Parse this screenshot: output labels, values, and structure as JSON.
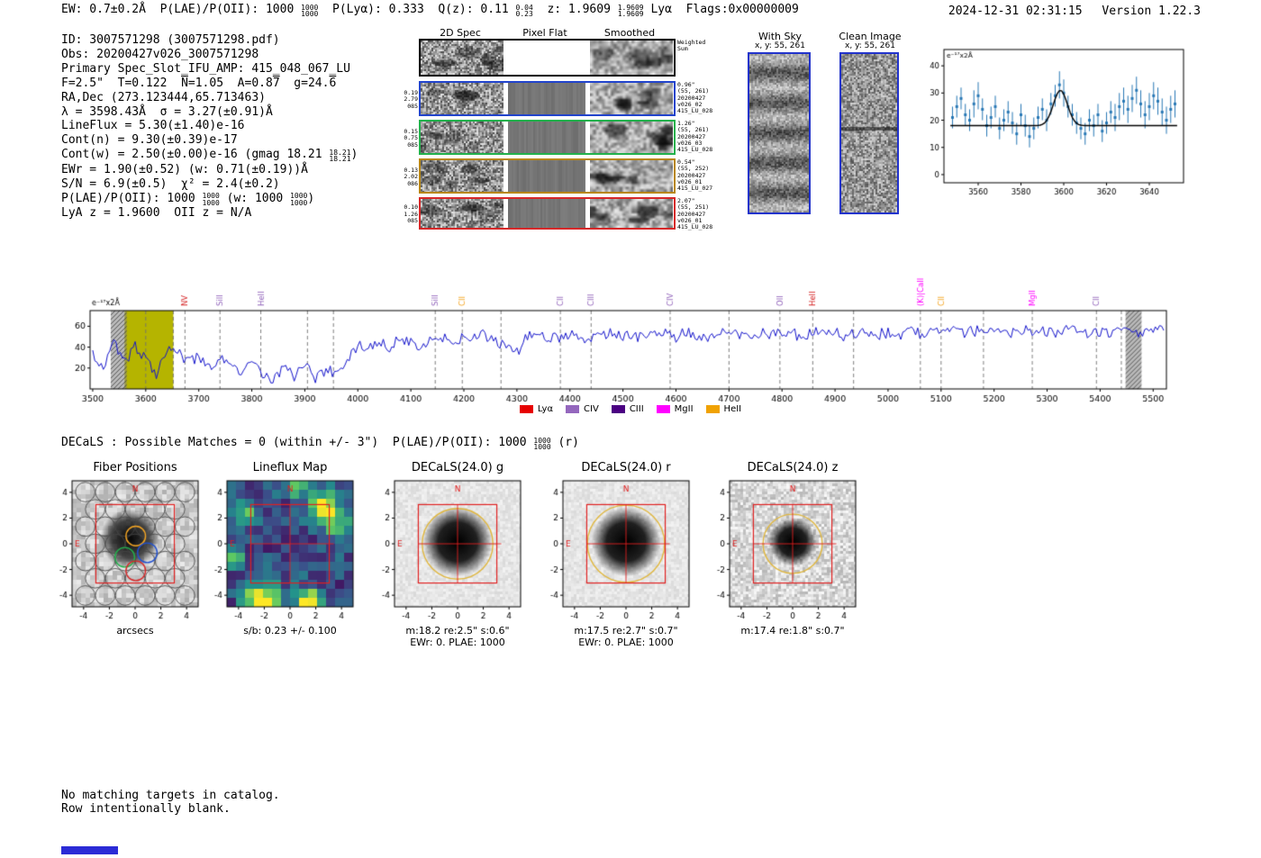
{
  "header": {
    "left": [
      {
        "t": "EW: 0.7±0.2Å  P(LAE)/P(OII): 1000 "
      },
      {
        "f": [
          "1000",
          "1000"
        ]
      },
      {
        "t": "  P(Lyα): 0.333  Q(z): 0.11 "
      },
      {
        "f": [
          "0.04",
          "0.23"
        ]
      },
      {
        "t": "  z: 1.9609 "
      },
      {
        "f": [
          "1.9609",
          "1.9609"
        ]
      },
      {
        "t": " Lyα  Flags:0x00000009"
      }
    ],
    "timestamp": "2024-12-31 02:31:15",
    "version": "Version 1.22.3"
  },
  "info_lines": [
    [
      {
        "t": "ID: 3007571298 (3007571298.pdf)"
      }
    ],
    [
      {
        "t": "Obs: 20200427v026_3007571298"
      }
    ],
    [
      {
        "t": "Primary Spec_Slot_IFU_AMP: 415_048_067_LU"
      }
    ],
    [
      {
        "t": "F=2.5\"  T=0.122  "
      },
      {
        "o": "N"
      },
      {
        "t": "=1.05  A=0.8"
      },
      {
        "o": "7"
      },
      {
        "t": "  g=24."
      },
      {
        "o": "6"
      }
    ],
    [
      {
        "t": "RA,Dec (273.123444,65.713463)"
      }
    ],
    [
      {
        "t": "λ = 3598.43Å  σ = 3.27(±0.91)Å"
      }
    ],
    [
      {
        "t": "LineFlux = 5.30(±1.40)e-16"
      }
    ],
    [
      {
        "t": "Cont(n) = 9.30(±0.39)e-17"
      }
    ],
    [
      {
        "t": "Cont(w) = 2.50(±0.00)e-16 (gmag 18.21 "
      },
      {
        "f": [
          "18.21",
          "18.21"
        ]
      },
      {
        "t": ")"
      }
    ],
    [
      {
        "t": "EWr = 1.90(±0.52) (w: 0.71(±0.19))Å"
      }
    ],
    [
      {
        "t": "S/N = 6.9(±0.5)  χ² = 2.4(±0.2)"
      }
    ],
    [
      {
        "t": "P(LAE)/P(OII): 1000 "
      },
      {
        "f": [
          "1000",
          "1000"
        ]
      },
      {
        "t": " (w: 1000 "
      },
      {
        "f": [
          "1000",
          "1000"
        ]
      },
      {
        "t": ")"
      }
    ],
    [
      {
        "t": "LyA z = 1.9600  OII z = N/A"
      }
    ]
  ],
  "spec2d": {
    "col_titles": [
      "2D Spec",
      "Pixel Flat",
      "Smoothed"
    ],
    "rows": [
      {
        "color": "#000000",
        "weighted": true,
        "left": [],
        "right": [
          "Weighted",
          "Sum"
        ]
      },
      {
        "color": "#2244cc",
        "left": [
          "0.19",
          "2.79",
          "085"
        ],
        "right": [
          "0.96\"",
          "(55, 261)",
          "20200427",
          "v026_02",
          "415_LU_028"
        ]
      },
      {
        "color": "#22b14c",
        "left": [
          "0.15",
          "0.75",
          "085"
        ],
        "right": [
          "1.26\"",
          "(55, 261)",
          "20200427",
          "v026_03",
          "415_LU_028"
        ]
      },
      {
        "color": "#b8860b",
        "left": [
          "0.13",
          "2.02",
          "086"
        ],
        "right": [
          "0.54\"",
          "(55, 252)",
          "20200427",
          "v026_01",
          "415_LU_027"
        ]
      },
      {
        "color": "#d62728",
        "left": [
          "0.10",
          "1.26",
          "085"
        ],
        "right": [
          "2.07\"",
          "(55, 251)",
          "20200427",
          "v026_01",
          "415_LU_028"
        ]
      }
    ]
  },
  "sky_panels": {
    "with_sky": {
      "title": "With Sky",
      "coords": "x, y: 55, 261"
    },
    "clean_image": {
      "title": "Clean Image",
      "coords": "x, y: 55, 261"
    }
  },
  "decals_line": [
    {
      "t": "DECaLS : Possible Matches = 0 (within +/- 3\")  P(LAE)/P(OII): 1000 "
    },
    {
      "f": [
        "1000",
        "1000"
      ]
    },
    {
      "t": " (r)"
    }
  ],
  "cutout_axis": {
    "ticks": [
      -4,
      -2,
      0,
      2,
      4
    ],
    "range": [
      -4.9,
      4.9
    ]
  },
  "cutout_panels": [
    {
      "title": "Fiber Positions",
      "type": "fiber",
      "xlabel": "arcsecs",
      "caption1": "",
      "caption2": ""
    },
    {
      "title": "Lineflux Map",
      "type": "lineflux",
      "xlabel": "",
      "caption1": "s/b: 0.23 +/- 0.100",
      "caption2": ""
    },
    {
      "title": "DECaLS(24.0) g",
      "type": "decals",
      "xlabel": "",
      "caption1": "m:18.2 re:2.5\" s:0.6\"",
      "caption2": "EWr: 0. PLAE: 1000"
    },
    {
      "title": "DECaLS(24.0) r",
      "type": "decals",
      "xlabel": "",
      "caption1": "m:17.5 re:2.7\" s:0.7\"",
      "caption2": "EWr: 0. PLAE: 1000"
    },
    {
      "title": "DECaLS(24.0) z",
      "type": "decals_z",
      "xlabel": "",
      "caption1": "m:17.4 re:1.8\" s:0.7\"",
      "caption2": ""
    }
  ],
  "notes": [
    "No matching targets in catalog.",
    "Row intentionally blank."
  ],
  "chart_data": [
    {
      "type": "scatter",
      "title": "line fit plot",
      "ylabel": "e⁻¹⁷x2Å",
      "xlim": [
        3544,
        3656
      ],
      "ylim": [
        -3,
        46
      ],
      "xticks": [
        3560,
        3580,
        3600,
        3620,
        3640
      ],
      "yticks": [
        0,
        10,
        20,
        30,
        40
      ],
      "point_color": "#2878b5",
      "fit_color": "#000000",
      "fit": {
        "center": 3598.43,
        "sigma": 3.27,
        "amplitude": 13,
        "continuum": 18
      },
      "points": [
        [
          3548,
          21,
          4
        ],
        [
          3550,
          25,
          4
        ],
        [
          3552,
          28,
          4
        ],
        [
          3554,
          22,
          4
        ],
        [
          3556,
          20,
          4
        ],
        [
          3558,
          26,
          5
        ],
        [
          3560,
          29,
          5
        ],
        [
          3562,
          24,
          4
        ],
        [
          3564,
          18,
          4
        ],
        [
          3566,
          21,
          4
        ],
        [
          3568,
          25,
          4
        ],
        [
          3570,
          17,
          4
        ],
        [
          3572,
          20,
          4
        ],
        [
          3574,
          23,
          4
        ],
        [
          3576,
          19,
          4
        ],
        [
          3578,
          15,
          4
        ],
        [
          3580,
          22,
          4
        ],
        [
          3582,
          18,
          4
        ],
        [
          3584,
          14,
          4
        ],
        [
          3586,
          17,
          4
        ],
        [
          3588,
          21,
          4
        ],
        [
          3590,
          24,
          4
        ],
        [
          3592,
          20,
          4
        ],
        [
          3594,
          26,
          4
        ],
        [
          3596,
          29,
          4
        ],
        [
          3598,
          33,
          5
        ],
        [
          3600,
          30,
          5
        ],
        [
          3602,
          25,
          4
        ],
        [
          3604,
          22,
          4
        ],
        [
          3606,
          19,
          4
        ],
        [
          3608,
          17,
          4
        ],
        [
          3610,
          15,
          4
        ],
        [
          3612,
          20,
          4
        ],
        [
          3614,
          18,
          4
        ],
        [
          3616,
          22,
          4
        ],
        [
          3618,
          16,
          4
        ],
        [
          3620,
          19,
          4
        ],
        [
          3622,
          23,
          4
        ],
        [
          3624,
          21,
          5
        ],
        [
          3626,
          25,
          5
        ],
        [
          3628,
          27,
          5
        ],
        [
          3630,
          24,
          5
        ],
        [
          3632,
          28,
          5
        ],
        [
          3634,
          31,
          5
        ],
        [
          3636,
          26,
          5
        ],
        [
          3638,
          22,
          5
        ],
        [
          3640,
          25,
          5
        ],
        [
          3642,
          29,
          5
        ],
        [
          3644,
          27,
          5
        ],
        [
          3646,
          23,
          5
        ],
        [
          3648,
          20,
          5
        ],
        [
          3650,
          24,
          5
        ],
        [
          3652,
          26,
          5
        ]
      ]
    },
    {
      "type": "line",
      "title": "full spectrum",
      "ylabel": "e⁻¹⁷x2Å",
      "xlim": [
        3495,
        5525
      ],
      "ylim": [
        0,
        75
      ],
      "xtick_start": 3500,
      "xtick_step": 100,
      "xtick_end": 5500,
      "yticks": [
        20,
        40,
        60
      ],
      "line_color": "#1414cc",
      "x_start": 3500,
      "x_step": 20,
      "y": [
        35,
        20,
        45,
        25,
        40,
        30,
        15,
        40,
        35,
        25,
        30,
        20,
        28,
        28,
        12,
        25,
        15,
        8,
        22,
        12,
        25,
        10,
        18,
        15,
        30,
        40,
        42,
        45,
        40,
        48,
        45,
        42,
        50,
        48,
        45,
        50,
        48,
        52,
        45,
        40,
        35,
        50,
        52,
        48,
        50,
        52,
        48,
        50,
        52,
        55,
        50,
        52,
        48,
        54,
        52,
        50,
        55,
        52,
        50,
        53,
        55,
        52,
        50,
        54,
        52,
        55,
        53,
        50,
        55,
        52,
        54,
        50,
        53,
        55,
        52,
        54,
        50,
        55,
        53,
        56,
        52,
        55,
        53,
        56,
        54,
        52,
        55,
        53,
        56,
        54,
        55,
        53,
        56,
        54,
        52,
        55,
        53,
        56,
        54,
        55,
        56,
        55
      ],
      "highlight_band": {
        "x0": 3560,
        "x1": 3652,
        "color": "#b5b400"
      },
      "hatch_bands": [
        [
          3534,
          3564
        ],
        [
          5448,
          5478
        ]
      ],
      "markers": [
        {
          "label": "NV",
          "x": 3674,
          "color": "#d62728"
        },
        {
          "label": "SiII",
          "x": 3740,
          "color": "#9467bd"
        },
        {
          "label": "HeII",
          "x": 3817,
          "color": "#9467bd"
        },
        {
          "label": "SiII",
          "x": 4146,
          "color": "#9467bd"
        },
        {
          "label": "CII",
          "x": 4197,
          "color": "#f5a623"
        },
        {
          "label": "CII",
          "x": 4382,
          "color": "#9467bd"
        },
        {
          "label": "CIII",
          "x": 4440,
          "color": "#9467bd"
        },
        {
          "label": "CIV",
          "x": 4589,
          "color": "#9467bd"
        },
        {
          "label": "OII",
          "x": 4796,
          "color": "#9467bd"
        },
        {
          "label": "HeII",
          "x": 4858,
          "color": "#d62728"
        },
        {
          "label": "(K)|CaII",
          "x": 5061,
          "color": "#ff00ff"
        },
        {
          "label": "CII",
          "x": 5100,
          "color": "#f5a623"
        },
        {
          "label": "MgII",
          "x": 5272,
          "color": "#ff00ff"
        },
        {
          "label": "CII",
          "x": 5393,
          "color": "#9467bd"
        }
      ],
      "extra_dashed": [
        3600,
        3652,
        3905,
        3954,
        4270,
        4700,
        4935,
        5180,
        5440
      ],
      "legend": [
        {
          "label": "Lyα",
          "color": "#e60000"
        },
        {
          "label": "CIV",
          "color": "#9467bd"
        },
        {
          "label": "CIII",
          "color": "#4b0082"
        },
        {
          "label": "MgII",
          "color": "#ff00ff"
        },
        {
          "label": "HeII",
          "color": "#f0a202"
        }
      ]
    }
  ]
}
